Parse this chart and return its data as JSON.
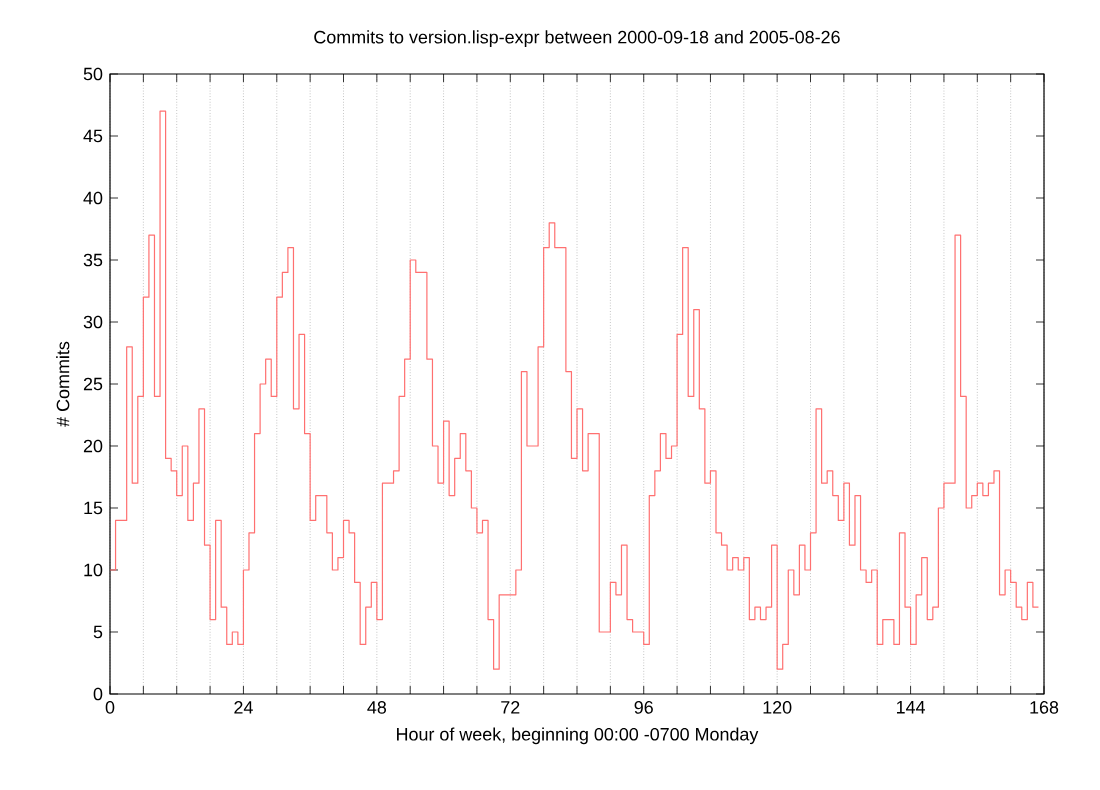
{
  "chart_data": {
    "type": "step",
    "title": "Commits to version.lisp-expr between 2000-09-18 and 2005-08-26",
    "xlabel": "Hour of week, beginning 00:00 -0700 Monday",
    "ylabel": "# Commits",
    "x": [
      0,
      1,
      2,
      3,
      4,
      5,
      6,
      7,
      8,
      9,
      10,
      11,
      12,
      13,
      14,
      15,
      16,
      17,
      18,
      19,
      20,
      21,
      22,
      23,
      24,
      25,
      26,
      27,
      28,
      29,
      30,
      31,
      32,
      33,
      34,
      35,
      36,
      37,
      38,
      39,
      40,
      41,
      42,
      43,
      44,
      45,
      46,
      47,
      48,
      49,
      50,
      51,
      52,
      53,
      54,
      55,
      56,
      57,
      58,
      59,
      60,
      61,
      62,
      63,
      64,
      65,
      66,
      67,
      68,
      69,
      70,
      71,
      72,
      73,
      74,
      75,
      76,
      77,
      78,
      79,
      80,
      81,
      82,
      83,
      84,
      85,
      86,
      87,
      88,
      89,
      90,
      91,
      92,
      93,
      94,
      95,
      96,
      97,
      98,
      99,
      100,
      101,
      102,
      103,
      104,
      105,
      106,
      107,
      108,
      109,
      110,
      111,
      112,
      113,
      114,
      115,
      116,
      117,
      118,
      119,
      120,
      121,
      122,
      123,
      124,
      125,
      126,
      127,
      128,
      129,
      130,
      131,
      132,
      133,
      134,
      135,
      136,
      137,
      138,
      139,
      140,
      141,
      142,
      143,
      144,
      145,
      146,
      147,
      148,
      149,
      150,
      151,
      152,
      153,
      154,
      155,
      156,
      157,
      158,
      159,
      160,
      161,
      162,
      163,
      164,
      165,
      166,
      167
    ],
    "values": [
      10,
      14,
      14,
      28,
      17,
      24,
      32,
      37,
      24,
      47,
      19,
      18,
      16,
      20,
      14,
      17,
      23,
      12,
      6,
      14,
      7,
      4,
      5,
      4,
      10,
      13,
      21,
      25,
      27,
      24,
      32,
      34,
      36,
      23,
      29,
      21,
      14,
      16,
      16,
      13,
      10,
      11,
      14,
      13,
      9,
      4,
      7,
      9,
      6,
      17,
      17,
      18,
      24,
      27,
      35,
      34,
      34,
      27,
      20,
      17,
      22,
      16,
      19,
      21,
      18,
      15,
      13,
      14,
      6,
      2,
      8,
      8,
      8,
      10,
      26,
      20,
      20,
      28,
      36,
      38,
      36,
      36,
      26,
      19,
      23,
      18,
      21,
      21,
      5,
      5,
      9,
      8,
      12,
      6,
      5,
      5,
      4,
      16,
      18,
      21,
      19,
      20,
      29,
      36,
      24,
      31,
      23,
      17,
      18,
      13,
      12,
      10,
      11,
      10,
      11,
      6,
      7,
      6,
      7,
      12,
      2,
      4,
      10,
      8,
      12,
      10,
      13,
      23,
      17,
      18,
      16,
      14,
      17,
      12,
      16,
      10,
      9,
      10,
      4,
      6,
      6,
      4,
      13,
      7,
      4,
      8,
      11,
      6,
      7,
      15,
      17,
      17,
      37,
      24,
      15,
      16,
      17,
      16,
      17,
      18,
      8,
      10,
      9,
      7,
      6,
      9,
      7,
      7
    ],
    "color": "#ff7070",
    "xlim": [
      0,
      168
    ],
    "xticks": [
      0,
      {
        "value": 6,
        "label": null
      },
      {
        "value": 12,
        "label": null
      },
      {
        "value": 18,
        "label": null
      },
      24,
      {
        "value": 30,
        "label": null
      },
      {
        "value": 36,
        "label": null
      },
      {
        "value": 42,
        "label": null
      },
      48,
      {
        "value": 54,
        "label": null
      },
      {
        "value": 60,
        "label": null
      },
      {
        "value": 66,
        "label": null
      },
      72,
      {
        "value": 78,
        "label": null
      },
      {
        "value": 84,
        "label": null
      },
      {
        "value": 90,
        "label": null
      },
      96,
      {
        "value": 102,
        "label": null
      },
      {
        "value": 108,
        "label": null
      },
      {
        "value": 114,
        "label": null
      },
      120,
      {
        "value": 126,
        "label": null
      },
      {
        "value": 132,
        "label": null
      },
      {
        "value": 138,
        "label": null
      },
      144,
      {
        "value": 150,
        "label": null
      },
      {
        "value": 156,
        "label": null
      },
      {
        "value": 162,
        "label": null
      },
      168
    ],
    "ylim": [
      0,
      50
    ],
    "yticks": [
      0,
      5,
      10,
      15,
      20,
      25,
      30,
      35,
      40,
      45,
      50
    ],
    "grid": "x"
  }
}
